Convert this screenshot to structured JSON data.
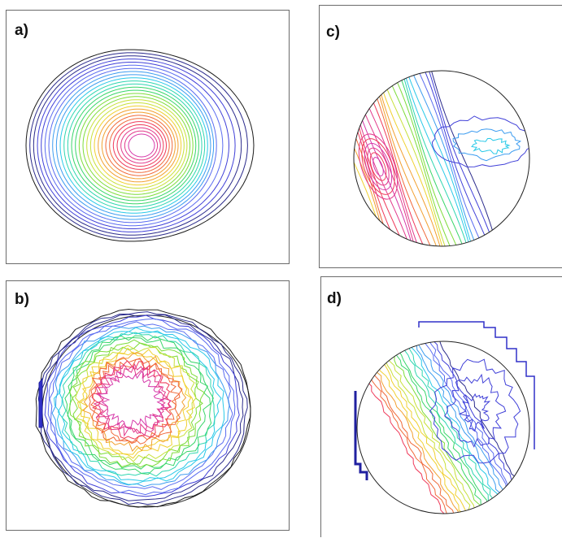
{
  "panels": {
    "a": {
      "label": "a)"
    },
    "b": {
      "label": "b)"
    },
    "c": {
      "label": "c)"
    },
    "d": {
      "label": "d)"
    }
  },
  "palette": [
    "#1a1a1a",
    "#2b2b8c",
    "#4040d8",
    "#5a6cf0",
    "#3c9cf0",
    "#29c9e8",
    "#2ed6b0",
    "#39d66a",
    "#7edc3a",
    "#c8e03a",
    "#f0d030",
    "#f2a030",
    "#f06a3a",
    "#ef3a5a",
    "#e23a8c",
    "#d63aaa"
  ]
}
